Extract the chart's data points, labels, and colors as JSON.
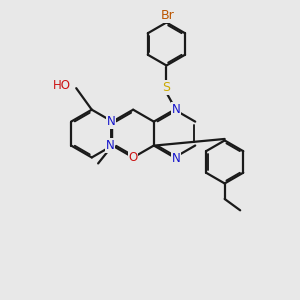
{
  "bg_color": "#e8e8e8",
  "bond_color": "#1a1a1a",
  "atom_colors": {
    "N": "#1414cc",
    "O": "#cc1414",
    "S": "#ccaa00",
    "Br": "#bb5500",
    "C": "#1a1a1a"
  },
  "lw": 1.6,
  "doff": 0.055,
  "fs": 8.5,
  "fig_size": [
    3.0,
    3.0
  ],
  "dpi": 100
}
